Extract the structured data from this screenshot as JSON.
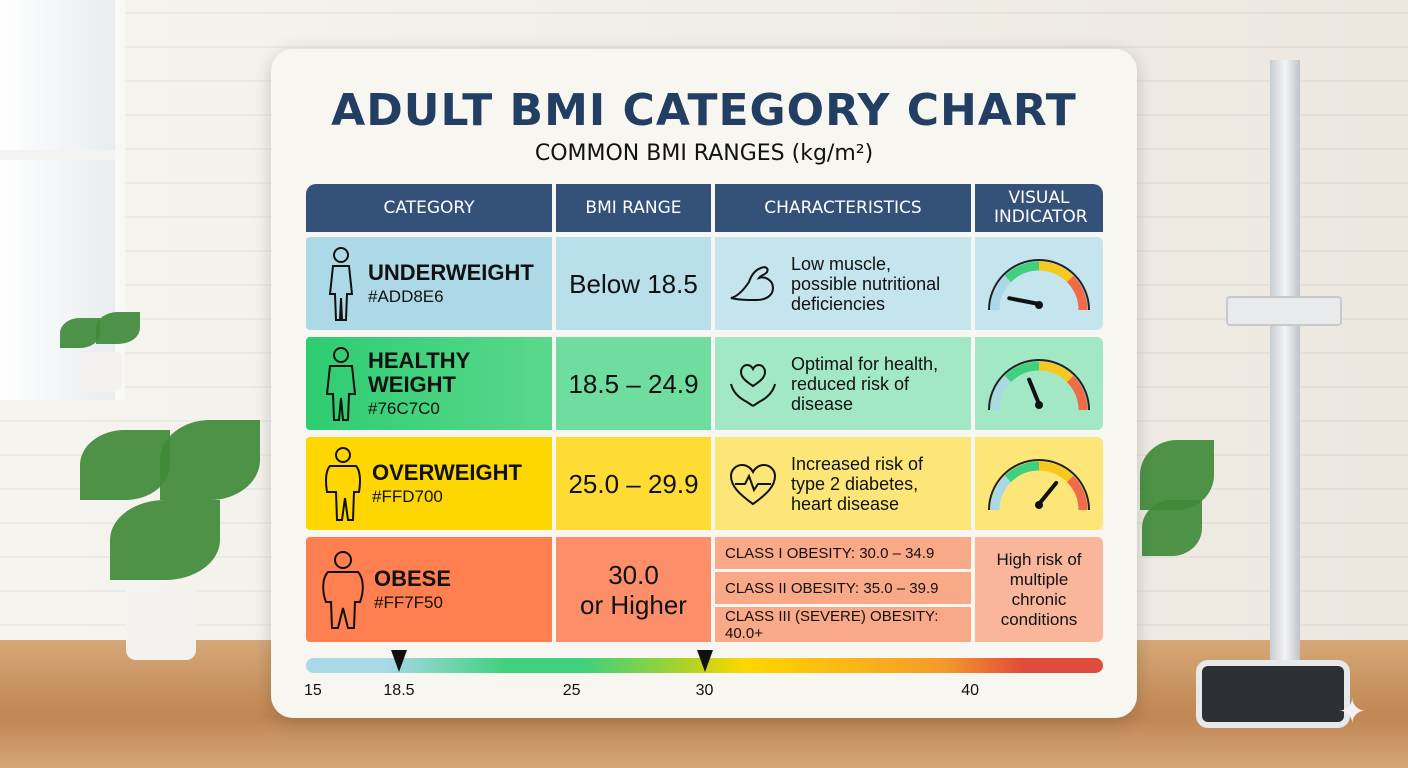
{
  "title": "ADULT BMI CATEGORY CHART",
  "subtitle": "COMMON BMI RANGES (kg/m²)",
  "headers": {
    "category": "CATEGORY",
    "range": "BMI RANGE",
    "characteristics": "CHARACTERISTICS",
    "indicator": "VISUAL INDICATOR"
  },
  "rows": [
    {
      "name": "UNDERWEIGHT",
      "hex": "#ADD8E6",
      "range": "Below 18.5",
      "desc": [
        "Low muscle,",
        "possible nutritional",
        "deficiencies"
      ],
      "icon": "muscle-arm-icon",
      "gauge_level": 0.12
    },
    {
      "name_lines": [
        "HEALTHY",
        "WEIGHT"
      ],
      "hex": "#76C7C0",
      "range": "18.5 – 24.9",
      "desc": [
        "Optimal for health,",
        "reduced risk of",
        "disease"
      ],
      "icon": "heart-hands-icon",
      "gauge_level": 0.4
    },
    {
      "name": "OVERWEIGHT",
      "hex": "#FFD700",
      "range": "25.0 – 29.9",
      "desc": [
        "Increased risk of",
        "type 2 diabetes,",
        "heart disease"
      ],
      "icon": "heartbeat-icon",
      "gauge_level": 0.68
    },
    {
      "name": "OBESE",
      "hex": "#FF7F50",
      "range_lines": [
        "30.0",
        "or Higher"
      ],
      "classes": [
        "CLASS I OBESITY: 30.0 – 34.9",
        "CLASS II OBESITY: 35.0 – 39.9",
        "CLASS III (SEVERE) OBESITY: 40.0+"
      ],
      "risk": [
        "High risk of",
        "multiple",
        "chronic",
        "conditions"
      ]
    }
  ],
  "scale": {
    "labels": [
      "15",
      "18.5",
      "25",
      "30",
      "40"
    ],
    "values": [
      15,
      18.5,
      25,
      30,
      40
    ],
    "min": 15,
    "max": 45,
    "markers": [
      18.5,
      30
    ]
  },
  "colors": {
    "header": "#34517A",
    "title": "#233E63",
    "underweight": "#ADD8E6",
    "healthy": "#3FD17E",
    "overweight": "#FFD700",
    "obese": "#FF7F50"
  }
}
